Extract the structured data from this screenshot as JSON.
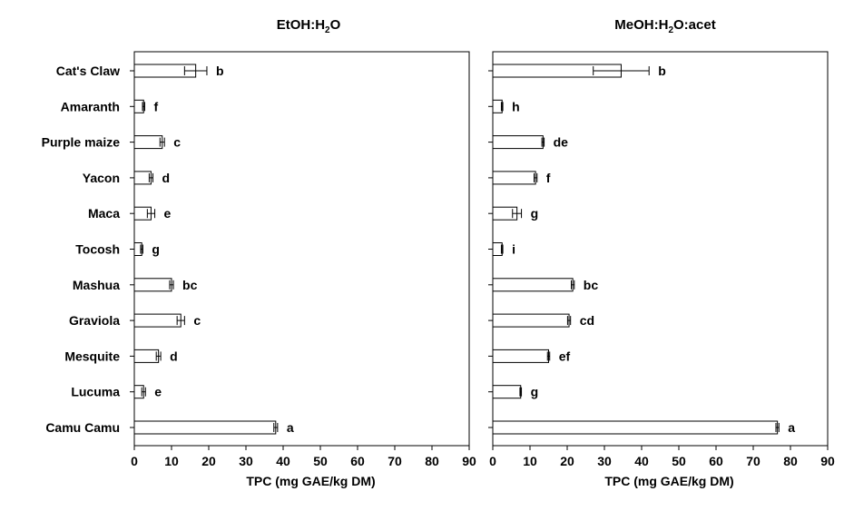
{
  "chart_data": [
    {
      "type": "bar",
      "orientation": "horizontal",
      "title_parts": [
        "EtOH:H",
        "2",
        "O"
      ],
      "xlabel": "TPC (mg GAE/kg DM)",
      "xlim": [
        0,
        90
      ],
      "xticks": [
        "0",
        "10",
        "20",
        "30",
        "40",
        "50",
        "60",
        "70",
        "80",
        "90"
      ],
      "categories": [
        "Cat's Claw",
        "Amaranth",
        "Purple maize",
        "Yacon",
        "Maca",
        "Tocosh",
        "Mashua",
        "Graviola",
        "Mesquite",
        "Lucuma",
        "Camu Camu"
      ],
      "values": [
        16.5,
        2.5,
        7.5,
        4.5,
        4.5,
        2.0,
        10.0,
        12.5,
        6.5,
        2.5,
        38.0
      ],
      "errors": [
        3.0,
        0.3,
        0.6,
        0.5,
        1.0,
        0.3,
        0.5,
        1.0,
        0.6,
        0.5,
        0.5
      ],
      "labels": [
        "b",
        "f",
        "c",
        "d",
        "e",
        "g",
        "bc",
        "c",
        "d",
        "e",
        "a"
      ],
      "grid": false
    },
    {
      "type": "bar",
      "orientation": "horizontal",
      "title_parts": [
        "MeOH:H",
        "2",
        "O:acet"
      ],
      "xlabel": "TPC (mg GAE/kg DM)",
      "xlim": [
        0,
        90
      ],
      "xticks": [
        "0",
        "10",
        "20",
        "30",
        "40",
        "50",
        "60",
        "70",
        "80",
        "90"
      ],
      "categories": [
        "Cat's Claw",
        "Amaranth",
        "Purple maize",
        "Yacon",
        "Maca",
        "Tocosh",
        "Mashua",
        "Graviola",
        "Mesquite",
        "Lucuma",
        "Camu Camu"
      ],
      "values": [
        34.5,
        2.5,
        13.5,
        11.5,
        6.5,
        2.5,
        21.5,
        20.5,
        15.0,
        7.5,
        76.5
      ],
      "errors": [
        7.5,
        0.2,
        0.3,
        0.4,
        1.2,
        0.2,
        0.4,
        0.4,
        0.3,
        0.2,
        0.4
      ],
      "labels": [
        "b",
        "h",
        "de",
        "f",
        "g",
        "i",
        "bc",
        "cd",
        "ef",
        "g",
        "a"
      ],
      "grid": false
    }
  ]
}
